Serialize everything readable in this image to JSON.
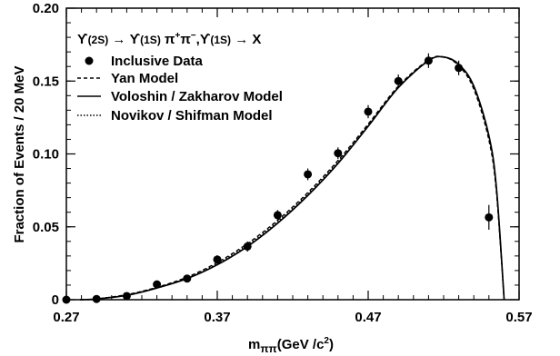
{
  "chart_data": {
    "type": "line",
    "title": "",
    "annotation": {
      "ups2s": "ϒ",
      "ups2s_state": "(2S)",
      "ups1s": "ϒ",
      "ups1s_state": "(1S)",
      "pion": "π",
      "plus": "+",
      "minus": "−",
      "ups1s_b": "ϒ",
      "ups1s_b_state": "(1S)",
      "sep": ",",
      "x_final": "X"
    },
    "xlabel": {
      "m": "m",
      "subscript": "ππ",
      "unit_open": "(GeV /c",
      "unit_sup": "2",
      "unit_close": ")"
    },
    "ylabel": "Fraction of  Events / 20 MeV",
    "xlim": [
      0.27,
      0.57
    ],
    "ylim": [
      0,
      0.2
    ],
    "xticks": [
      "0.27",
      "0.37",
      "0.47",
      "0.57"
    ],
    "yticks": [
      "0",
      "0.05",
      "0.10",
      "0.15",
      "0.20"
    ],
    "grid": false,
    "legend_position": "top-left",
    "series": [
      {
        "name": "Inclusive Data",
        "style": "points-with-error-bars",
        "x": [
          0.27,
          0.29,
          0.31,
          0.33,
          0.35,
          0.37,
          0.39,
          0.41,
          0.43,
          0.45,
          0.47,
          0.49,
          0.51,
          0.53,
          0.55
        ],
        "y": [
          0.0,
          0.0005,
          0.0025,
          0.0105,
          0.0145,
          0.0275,
          0.0365,
          0.058,
          0.086,
          0.1005,
          0.129,
          0.15,
          0.164,
          0.159,
          0.0565
        ],
        "yerr": [
          0.001,
          0.001,
          0.0015,
          0.002,
          0.0025,
          0.003,
          0.0035,
          0.0035,
          0.004,
          0.004,
          0.0045,
          0.0045,
          0.005,
          0.005,
          0.0085
        ]
      },
      {
        "name": "Yan  Model",
        "style": "dashed",
        "x": [
          0.2792,
          0.29,
          0.31,
          0.33,
          0.35,
          0.37,
          0.39,
          0.41,
          0.43,
          0.45,
          0.47,
          0.49,
          0.51,
          0.52,
          0.53,
          0.54,
          0.55,
          0.555,
          0.5601
        ],
        "y": [
          0.0,
          0.0005,
          0.0035,
          0.0085,
          0.0155,
          0.0255,
          0.0385,
          0.0545,
          0.0735,
          0.0955,
          0.1205,
          0.1465,
          0.1645,
          0.1665,
          0.1605,
          0.1445,
          0.1095,
          0.0735,
          0.0
        ]
      },
      {
        "name": "Voloshin / Zakharov Model",
        "style": "solid",
        "x": [
          0.2792,
          0.29,
          0.31,
          0.33,
          0.35,
          0.37,
          0.39,
          0.41,
          0.43,
          0.45,
          0.47,
          0.49,
          0.51,
          0.52,
          0.53,
          0.54,
          0.55,
          0.555,
          0.5601
        ],
        "y": [
          0.0,
          0.0005,
          0.003,
          0.008,
          0.0145,
          0.024,
          0.0365,
          0.0525,
          0.0715,
          0.0935,
          0.119,
          0.1455,
          0.164,
          0.1665,
          0.1615,
          0.1465,
          0.1125,
          0.0765,
          0.0
        ]
      },
      {
        "name": "Novikov / Shifman Model",
        "style": "dotted",
        "x": [
          0.2792,
          0.29,
          0.31,
          0.33,
          0.35,
          0.37,
          0.39,
          0.41,
          0.43,
          0.45,
          0.47,
          0.49,
          0.51,
          0.52,
          0.53,
          0.54,
          0.55,
          0.555,
          0.5601
        ],
        "y": [
          0.0,
          0.0006,
          0.0033,
          0.0083,
          0.015,
          0.0248,
          0.0376,
          0.0536,
          0.0726,
          0.0946,
          0.1198,
          0.146,
          0.1642,
          0.1664,
          0.161,
          0.1455,
          0.111,
          0.075,
          0.0
        ]
      }
    ]
  }
}
